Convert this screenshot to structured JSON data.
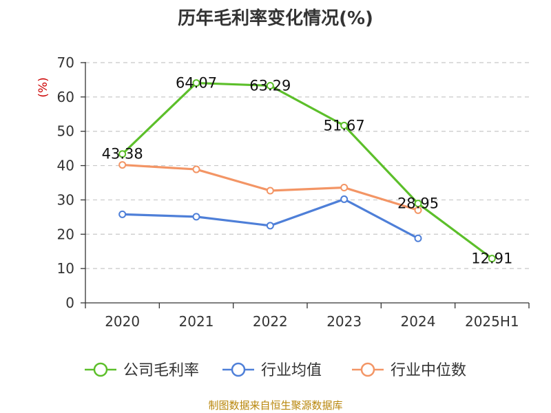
{
  "chart_data": {
    "type": "line",
    "title": "历年毛利率变化情况(%)",
    "ylabel": "(%)",
    "ylim": [
      0,
      70
    ],
    "yticks": [
      0,
      10,
      20,
      30,
      40,
      50,
      60,
      70
    ],
    "categories": [
      "2020",
      "2021",
      "2022",
      "2023",
      "2024",
      "2025H1"
    ],
    "grid": true,
    "legend_position": "bottom",
    "series": [
      {
        "name": "公司毛利率",
        "color": "#5cbf2a",
        "values": [
          43.38,
          64.07,
          63.29,
          51.67,
          28.95,
          12.91
        ],
        "labels": [
          "43.38",
          "64.07",
          "63.29",
          "51.67",
          "28.95",
          "12.91"
        ]
      },
      {
        "name": "行业均值",
        "color": "#4e7fd8",
        "values": [
          25.8,
          25.1,
          22.5,
          30.2,
          18.8,
          null
        ]
      },
      {
        "name": "行业中位数",
        "color": "#f39565",
        "values": [
          40.2,
          38.9,
          32.7,
          33.6,
          27.0,
          null
        ]
      }
    ]
  },
  "source": "制图数据来自恒生聚源数据库"
}
